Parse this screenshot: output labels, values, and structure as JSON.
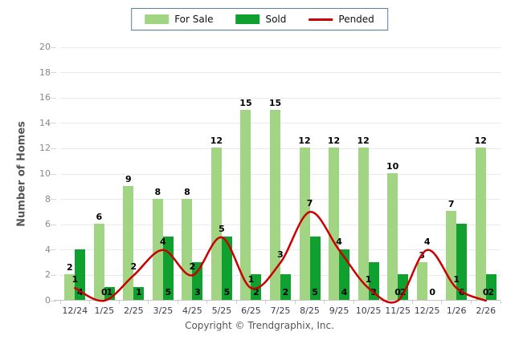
{
  "legend": {
    "items": [
      {
        "label": "For Sale"
      },
      {
        "label": "Sold"
      },
      {
        "label": "Pended"
      }
    ]
  },
  "footer": "Copyright © Trendgraphix, Inc.",
  "colors": {
    "for_sale": "#a1d483",
    "sold": "#10a030",
    "pended": "#cc0000",
    "legend_border": "#5b7fa8",
    "gridline": "#eaeaea",
    "axis_line": "#c6c6c6"
  },
  "chart_data": {
    "type": "bar",
    "subtype": "grouped bars with smoothed line overlay",
    "categories": [
      "12/24",
      "1/25",
      "2/25",
      "3/25",
      "4/25",
      "5/25",
      "6/25",
      "7/25",
      "8/25",
      "9/25",
      "10/25",
      "11/25",
      "12/25",
      "1/26",
      "2/26"
    ],
    "series": [
      {
        "name": "For Sale",
        "type": "bar",
        "color": "#a1d483",
        "values": [
          2,
          6,
          9,
          8,
          8,
          12,
          15,
          15,
          12,
          12,
          12,
          10,
          3,
          7,
          12
        ]
      },
      {
        "name": "Sold",
        "type": "bar",
        "color": "#10a030",
        "values": [
          4,
          1,
          1,
          5,
          3,
          5,
          2,
          2,
          5,
          4,
          3,
          2,
          0,
          6,
          2
        ]
      },
      {
        "name": "Pended",
        "type": "line",
        "color": "#cc0000",
        "values": [
          1,
          0,
          2,
          4,
          2,
          5,
          1,
          3,
          7,
          4,
          1,
          0,
          4,
          1,
          0
        ]
      }
    ],
    "title": "",
    "xlabel": "",
    "ylabel": "Number of Homes",
    "ylim": [
      0,
      20
    ],
    "yticks": [
      0,
      2,
      4,
      6,
      8,
      10,
      12,
      14,
      16,
      18,
      20
    ],
    "grid": "horizontal",
    "legend_position": "top-center",
    "data_labels": true
  }
}
